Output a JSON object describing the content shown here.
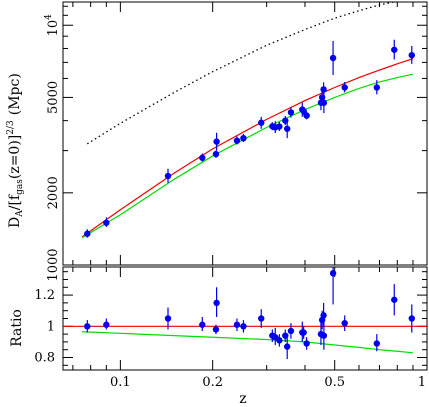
{
  "colors": {
    "points": "#0000ee",
    "red_model": "#ee0000",
    "green_model": "#00dd00",
    "dotted_model": "#000000"
  },
  "chart_data": [
    {
      "panel": "top",
      "type": "scatter",
      "xlabel": "z",
      "x_scale": "log",
      "y_scale": "log",
      "xlim": [
        0.065,
        1.0
      ],
      "ylim": [
        1000,
        12500
      ],
      "x_ticks": [
        0.1,
        0.2,
        0.5,
        1
      ],
      "x_tick_labels": [
        "0.1",
        "0.2",
        "0.5",
        "1"
      ],
      "y_ticks": [
        1000,
        2000,
        5000,
        10000
      ],
      "y_tick_labels": [
        "1000",
        "2000",
        "5000",
        "10^4"
      ],
      "ylabel_parts": {
        "pre": "D",
        "sub1": "A",
        "mid": "/[f",
        "sub2": "gas",
        "post": "(z=0)]",
        "sup": "2/3",
        "unit": "(Mpc)"
      },
      "points": [
        {
          "z": 0.078,
          "y": 1350,
          "ylo": 1300,
          "yhi": 1410
        },
        {
          "z": 0.09,
          "y": 1500,
          "ylo": 1440,
          "yhi": 1580
        },
        {
          "z": 0.143,
          "y": 2350,
          "ylo": 2200,
          "yhi": 2520
        },
        {
          "z": 0.185,
          "y": 2800,
          "ylo": 2700,
          "yhi": 2920
        },
        {
          "z": 0.205,
          "y": 2900,
          "ylo": 2800,
          "yhi": 3000
        },
        {
          "z": 0.206,
          "y": 3270,
          "ylo": 3000,
          "yhi": 3560
        },
        {
          "z": 0.24,
          "y": 3300,
          "ylo": 3180,
          "yhi": 3440
        },
        {
          "z": 0.252,
          "y": 3380,
          "ylo": 3260,
          "yhi": 3520
        },
        {
          "z": 0.288,
          "y": 3920,
          "ylo": 3700,
          "yhi": 4150
        },
        {
          "z": 0.313,
          "y": 3790,
          "ylo": 3650,
          "yhi": 3940
        },
        {
          "z": 0.32,
          "y": 3750,
          "ylo": 3550,
          "yhi": 3980
        },
        {
          "z": 0.33,
          "y": 3780,
          "ylo": 3620,
          "yhi": 3950
        },
        {
          "z": 0.345,
          "y": 4000,
          "ylo": 3830,
          "yhi": 4180
        },
        {
          "z": 0.35,
          "y": 3700,
          "ylo": 3380,
          "yhi": 4030
        },
        {
          "z": 0.36,
          "y": 4330,
          "ylo": 4120,
          "yhi": 4550
        },
        {
          "z": 0.392,
          "y": 4450,
          "ylo": 4150,
          "yhi": 4750
        },
        {
          "z": 0.396,
          "y": 4380,
          "ylo": 4220,
          "yhi": 4550
        },
        {
          "z": 0.405,
          "y": 4200,
          "ylo": 4050,
          "yhi": 4360
        },
        {
          "z": 0.451,
          "y": 4750,
          "ylo": 4420,
          "yhi": 5100
        },
        {
          "z": 0.455,
          "y": 5000,
          "ylo": 4720,
          "yhi": 5300
        },
        {
          "z": 0.46,
          "y": 5400,
          "ylo": 5050,
          "yhi": 5780
        },
        {
          "z": 0.461,
          "y": 4750,
          "ylo": 4300,
          "yhi": 5250
        },
        {
          "z": 0.494,
          "y": 7300,
          "ylo": 6200,
          "yhi": 8600
        },
        {
          "z": 0.539,
          "y": 5500,
          "ylo": 5250,
          "yhi": 5800
        },
        {
          "z": 0.686,
          "y": 5500,
          "ylo": 5150,
          "yhi": 5900
        },
        {
          "z": 0.782,
          "y": 7900,
          "ylo": 7200,
          "yhi": 8700
        },
        {
          "z": 0.892,
          "y": 7500,
          "ylo": 6900,
          "yhi": 8200
        }
      ],
      "lines": [
        {
          "color_key": "red_model",
          "style": "solid",
          "x": [
            0.075,
            0.1,
            0.15,
            0.2,
            0.3,
            0.4,
            0.5,
            0.6,
            0.7,
            0.8,
            0.9
          ],
          "y": [
            1310,
            1700,
            2420,
            3050,
            4050,
            4850,
            5500,
            6050,
            6500,
            6900,
            7250
          ]
        },
        {
          "color_key": "green_model",
          "style": "solid",
          "x": [
            0.075,
            0.1,
            0.15,
            0.2,
            0.3,
            0.4,
            0.5,
            0.6,
            0.7,
            0.8,
            0.9
          ],
          "y": [
            1300,
            1620,
            2280,
            2850,
            3750,
            4450,
            5000,
            5450,
            5800,
            6050,
            6250
          ]
        },
        {
          "color_key": "dotted_model",
          "style": "dotted",
          "x": [
            0.078,
            0.1,
            0.15,
            0.2,
            0.3,
            0.4,
            0.5,
            0.6,
            0.7,
            0.8
          ],
          "y": [
            3200,
            3900,
            5250,
            6400,
            8250,
            9600,
            10700,
            11500,
            12150,
            12600
          ]
        }
      ]
    },
    {
      "panel": "bottom",
      "type": "scatter",
      "xlabel": "z",
      "ylabel": "Ratio",
      "x_scale": "log",
      "xlim": [
        0.065,
        1.0
      ],
      "ylim": [
        0.72,
        1.38
      ],
      "y_ticks": [
        0.8,
        1.0,
        1.2
      ],
      "y_tick_labels": [
        "0.8",
        "1",
        "1.2"
      ],
      "points": [
        {
          "z": 0.078,
          "y": 1.0,
          "ylo": 0.96,
          "yhi": 1.04
        },
        {
          "z": 0.09,
          "y": 1.01,
          "ylo": 0.98,
          "yhi": 1.05
        },
        {
          "z": 0.143,
          "y": 1.05,
          "ylo": 0.98,
          "yhi": 1.12
        },
        {
          "z": 0.185,
          "y": 1.01,
          "ylo": 0.97,
          "yhi": 1.06
        },
        {
          "z": 0.205,
          "y": 0.98,
          "ylo": 0.95,
          "yhi": 1.01
        },
        {
          "z": 0.206,
          "y": 1.15,
          "ylo": 1.06,
          "yhi": 1.25
        },
        {
          "z": 0.24,
          "y": 1.01,
          "ylo": 0.97,
          "yhi": 1.05
        },
        {
          "z": 0.252,
          "y": 1.0,
          "ylo": 0.96,
          "yhi": 1.04
        },
        {
          "z": 0.288,
          "y": 1.05,
          "ylo": 0.99,
          "yhi": 1.11
        },
        {
          "z": 0.313,
          "y": 0.94,
          "ylo": 0.9,
          "yhi": 0.98
        },
        {
          "z": 0.32,
          "y": 0.93,
          "ylo": 0.88,
          "yhi": 0.99
        },
        {
          "z": 0.33,
          "y": 0.91,
          "ylo": 0.87,
          "yhi": 0.95
        },
        {
          "z": 0.345,
          "y": 0.94,
          "ylo": 0.9,
          "yhi": 0.98
        },
        {
          "z": 0.35,
          "y": 0.87,
          "ylo": 0.79,
          "yhi": 0.95
        },
        {
          "z": 0.36,
          "y": 0.97,
          "ylo": 0.92,
          "yhi": 1.02
        },
        {
          "z": 0.392,
          "y": 0.96,
          "ylo": 0.9,
          "yhi": 1.03
        },
        {
          "z": 0.396,
          "y": 0.96,
          "ylo": 0.92,
          "yhi": 1.0
        },
        {
          "z": 0.405,
          "y": 0.89,
          "ylo": 0.85,
          "yhi": 0.93
        },
        {
          "z": 0.451,
          "y": 0.95,
          "ylo": 0.88,
          "yhi": 1.03
        },
        {
          "z": 0.455,
          "y": 1.04,
          "ylo": 0.98,
          "yhi": 1.1
        },
        {
          "z": 0.46,
          "y": 1.07,
          "ylo": 1.0,
          "yhi": 1.15
        },
        {
          "z": 0.461,
          "y": 0.94,
          "ylo": 0.85,
          "yhi": 1.04
        },
        {
          "z": 0.494,
          "y": 1.34,
          "ylo": 1.14,
          "yhi": 1.55
        },
        {
          "z": 0.539,
          "y": 1.02,
          "ylo": 0.97,
          "yhi": 1.07
        },
        {
          "z": 0.686,
          "y": 0.89,
          "ylo": 0.84,
          "yhi": 0.95
        },
        {
          "z": 0.782,
          "y": 1.17,
          "ylo": 1.07,
          "yhi": 1.27
        },
        {
          "z": 0.892,
          "y": 1.05,
          "ylo": 0.96,
          "yhi": 1.14
        }
      ],
      "lines": [
        {
          "color_key": "red_model",
          "style": "solid",
          "x": [
            0.065,
            1.0
          ],
          "y": [
            1.0,
            1.0
          ]
        },
        {
          "color_key": "green_model",
          "style": "solid",
          "x": [
            0.075,
            0.1,
            0.2,
            0.3,
            0.4,
            0.5,
            0.6,
            0.7,
            0.8,
            0.9
          ],
          "y": [
            0.965,
            0.955,
            0.93,
            0.915,
            0.9,
            0.88,
            0.865,
            0.85,
            0.84,
            0.83
          ]
        }
      ]
    }
  ]
}
